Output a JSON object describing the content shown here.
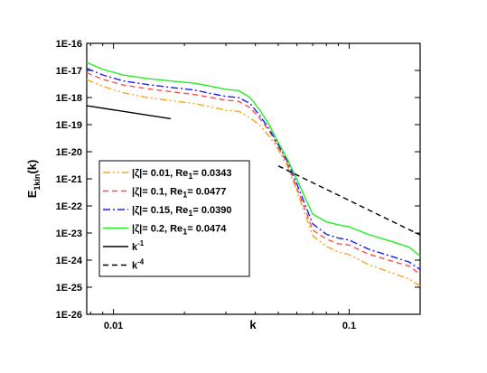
{
  "chart_data": {
    "type": "line",
    "xscale": "log",
    "yscale": "log",
    "xlim": [
      0.0077,
      0.2
    ],
    "ylim": [
      1e-26,
      1e-16
    ],
    "xlabel": "k",
    "ylabel_main": "E",
    "ylabel_sub": "1kin",
    "ylabel_tail": "(k)",
    "xticks": [
      {
        "v": 0.01,
        "label": "0.01"
      },
      {
        "v": 0.1,
        "label": "0.1"
      }
    ],
    "yticks": [
      {
        "v": 1e-16,
        "label": "1E-16"
      },
      {
        "v": 1e-17,
        "label": "1E-17"
      },
      {
        "v": 1e-18,
        "label": "1E-18"
      },
      {
        "v": 1e-19,
        "label": "1E-19"
      },
      {
        "v": 1e-20,
        "label": "1E-20"
      },
      {
        "v": 1e-21,
        "label": "1E-21"
      },
      {
        "v": 1e-22,
        "label": "1E-22"
      },
      {
        "v": 1e-23,
        "label": "1E-23"
      },
      {
        "v": 1e-24,
        "label": "1E-24"
      },
      {
        "v": 1e-25,
        "label": "1E-25"
      },
      {
        "v": 1e-26,
        "label": "1E-26"
      }
    ],
    "legend": {
      "position": "lower-left",
      "entries": [
        {
          "zeta": "0.01",
          "re": "0.0343",
          "color": "#f5a623",
          "dash": "dashdotdot"
        },
        {
          "zeta": "0.1",
          "re": "0.0477",
          "color": "#ff4d4d",
          "dash": "dash"
        },
        {
          "zeta": "0.15",
          "re": "0.0390",
          "color": "#1a1aff",
          "dash": "dashdot"
        },
        {
          "zeta": "0.2",
          "re": "0.0474",
          "color": "#22ee22",
          "dash": "solid"
        },
        {
          "label_base": "k",
          "label_sup": "-1",
          "color": "#000000",
          "dash": "solid"
        },
        {
          "label_base": "k",
          "label_sup": "-4",
          "color": "#000000",
          "dash": "dash"
        }
      ]
    },
    "series": [
      {
        "color": "#f5a623",
        "dash": "dashdotdot",
        "points": [
          [
            0.0077,
            4.6e-18
          ],
          [
            0.009,
            2.6e-18
          ],
          [
            0.011,
            1.5e-18
          ],
          [
            0.014,
            1e-18
          ],
          [
            0.018,
            7.5e-19
          ],
          [
            0.022,
            6e-19
          ],
          [
            0.026,
            4.5e-19
          ],
          [
            0.03,
            3.4e-19
          ],
          [
            0.034,
            3.1e-19
          ],
          [
            0.038,
            1.8e-19
          ],
          [
            0.042,
            9e-20
          ],
          [
            0.046,
            3.5e-20
          ],
          [
            0.05,
            1.2e-20
          ],
          [
            0.055,
            2.6e-21
          ],
          [
            0.06,
            3.5e-22
          ],
          [
            0.065,
            5e-23
          ],
          [
            0.07,
            8e-24
          ],
          [
            0.08,
            3.2e-24
          ],
          [
            0.09,
            2e-24
          ],
          [
            0.1,
            1.6e-24
          ],
          [
            0.12,
            7e-25
          ],
          [
            0.15,
            3.5e-25
          ],
          [
            0.18,
            2e-25
          ],
          [
            0.2,
            1.1e-25
          ]
        ]
      },
      {
        "color": "#ff4d4d",
        "dash": "dash",
        "points": [
          [
            0.0077,
            8.2e-18
          ],
          [
            0.009,
            4.7e-18
          ],
          [
            0.011,
            2.9e-18
          ],
          [
            0.014,
            2.1e-18
          ],
          [
            0.018,
            1.6e-18
          ],
          [
            0.022,
            1.3e-18
          ],
          [
            0.026,
            1e-18
          ],
          [
            0.03,
            8e-19
          ],
          [
            0.034,
            7.2e-19
          ],
          [
            0.038,
            4.2e-19
          ],
          [
            0.042,
            1.6e-19
          ],
          [
            0.046,
            5.5e-20
          ],
          [
            0.05,
            1.5e-20
          ],
          [
            0.055,
            3.3e-21
          ],
          [
            0.06,
            4.5e-22
          ],
          [
            0.065,
            7.5e-23
          ],
          [
            0.07,
            1.3e-23
          ],
          [
            0.08,
            6e-24
          ],
          [
            0.09,
            4e-24
          ],
          [
            0.1,
            3.6e-24
          ],
          [
            0.12,
            1.7e-24
          ],
          [
            0.15,
            9.5e-25
          ],
          [
            0.18,
            6e-25
          ],
          [
            0.2,
            3e-25
          ]
        ]
      },
      {
        "color": "#1a1aff",
        "dash": "dashdot",
        "points": [
          [
            0.0077,
            1.2e-17
          ],
          [
            0.009,
            6.8e-18
          ],
          [
            0.011,
            4.1e-18
          ],
          [
            0.014,
            3e-18
          ],
          [
            0.018,
            2.3e-18
          ],
          [
            0.022,
            1.9e-18
          ],
          [
            0.026,
            1.4e-18
          ],
          [
            0.03,
            1.1e-18
          ],
          [
            0.034,
            1e-18
          ],
          [
            0.038,
            6e-19
          ],
          [
            0.042,
            2e-19
          ],
          [
            0.046,
            6.5e-20
          ],
          [
            0.05,
            1.8e-20
          ],
          [
            0.055,
            4e-21
          ],
          [
            0.06,
            6.5e-22
          ],
          [
            0.065,
            1.1e-22
          ],
          [
            0.07,
            2.2e-23
          ],
          [
            0.08,
            9e-24
          ],
          [
            0.09,
            6.5e-24
          ],
          [
            0.1,
            5.5e-24
          ],
          [
            0.12,
            2.6e-24
          ],
          [
            0.15,
            1.4e-24
          ],
          [
            0.18,
            8.5e-25
          ],
          [
            0.2,
            4.5e-25
          ]
        ]
      },
      {
        "color": "#22ee22",
        "dash": "solid",
        "points": [
          [
            0.0077,
            2e-17
          ],
          [
            0.009,
            1.1e-17
          ],
          [
            0.011,
            6.8e-18
          ],
          [
            0.014,
            5e-18
          ],
          [
            0.018,
            4e-18
          ],
          [
            0.022,
            3.4e-18
          ],
          [
            0.026,
            2.6e-18
          ],
          [
            0.03,
            2e-18
          ],
          [
            0.034,
            1.8e-18
          ],
          [
            0.038,
            1e-18
          ],
          [
            0.042,
            3.2e-19
          ],
          [
            0.046,
            9e-20
          ],
          [
            0.05,
            2.2e-20
          ],
          [
            0.055,
            4.8e-21
          ],
          [
            0.06,
            9.5e-22
          ],
          [
            0.065,
            2e-22
          ],
          [
            0.07,
            5e-23
          ],
          [
            0.08,
            2.6e-23
          ],
          [
            0.09,
            2e-23
          ],
          [
            0.1,
            1.7e-23
          ],
          [
            0.12,
            9e-24
          ],
          [
            0.15,
            5e-24
          ],
          [
            0.18,
            3e-24
          ],
          [
            0.2,
            1.4e-24
          ]
        ]
      },
      {
        "color": "#000000",
        "dash": "solid",
        "points": [
          [
            0.0077,
            5e-19
          ],
          [
            0.0175,
            1.65e-19
          ]
        ]
      },
      {
        "color": "#000000",
        "dash": "dash",
        "points": [
          [
            0.05,
            3e-21
          ],
          [
            0.2,
            8.5e-24
          ]
        ]
      }
    ]
  }
}
